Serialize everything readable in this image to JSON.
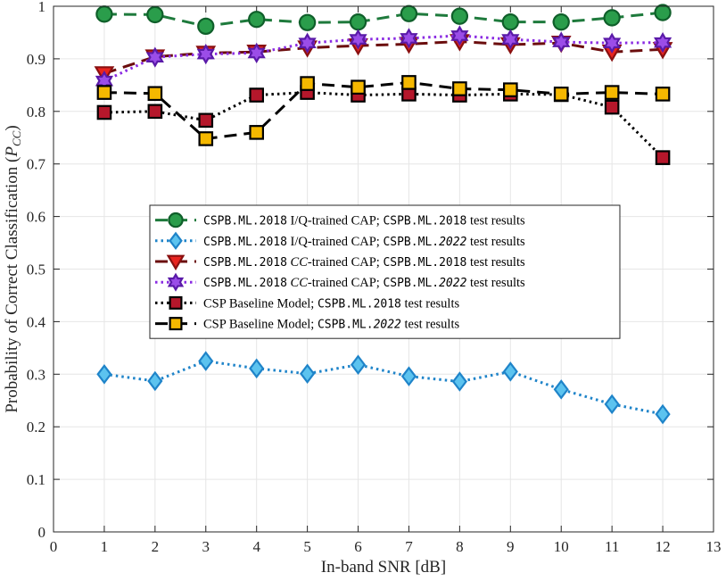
{
  "chart_data": {
    "type": "line",
    "xlabel": "In-band SNR [dB]",
    "ylabel": {
      "prefix": "Probability of Correct Classification (",
      "symbol": "P",
      "subscript": "CC",
      "suffix": ")"
    },
    "xlim": [
      0,
      13
    ],
    "ylim": [
      0,
      1
    ],
    "xticks": [
      "0",
      "1",
      "2",
      "3",
      "4",
      "5",
      "6",
      "7",
      "8",
      "9",
      "10",
      "11",
      "12",
      "13"
    ],
    "yticks": [
      "0",
      "0.1",
      "0.2",
      "0.3",
      "0.4",
      "0.5",
      "0.6",
      "0.7",
      "0.8",
      "0.9",
      "1"
    ],
    "grid": true,
    "legend_position": "center-left",
    "x": [
      1,
      2,
      3,
      4,
      5,
      6,
      7,
      8,
      9,
      10,
      11,
      12
    ],
    "series": [
      {
        "legend": [
          {
            "t": "CSPB.ML.2018",
            "s": "mono"
          },
          {
            "t": " I/Q-trained CAP; ",
            "s": "serif"
          },
          {
            "t": "CSPB.ML.2018",
            "s": "mono"
          },
          {
            "t": " test results",
            "s": "serif"
          }
        ],
        "values": [
          0.985,
          0.984,
          0.962,
          0.975,
          0.969,
          0.97,
          0.986,
          0.981,
          0.97,
          0.97,
          0.978,
          0.988
        ],
        "color": "#1e7a3c",
        "fill": "#2a9d4b",
        "stroke": "#0f5f2a",
        "dash": "14 8",
        "marker": "circle"
      },
      {
        "legend": [
          {
            "t": "CSPB.ML.2018",
            "s": "mono"
          },
          {
            "t": " I/Q-trained CAP; ",
            "s": "serif"
          },
          {
            "t": "CSPB.ML.",
            "s": "mono"
          },
          {
            "t": "2022",
            "s": "monoital"
          },
          {
            "t": " test results",
            "s": "serif"
          }
        ],
        "values": [
          0.3,
          0.287,
          0.325,
          0.311,
          0.301,
          0.318,
          0.296,
          0.286,
          0.305,
          0.271,
          0.243,
          0.224
        ],
        "color": "#1f84c9",
        "fill": "#5cc3ef",
        "stroke": "#1f84c9",
        "dash": "2.5 4",
        "marker": "diamond"
      },
      {
        "legend": [
          {
            "t": "CSPB.ML.2018",
            "s": "mono"
          },
          {
            "t": " ",
            "s": "serif"
          },
          {
            "t": "CC",
            "s": "ital"
          },
          {
            "t": "-trained CAP; ",
            "s": "serif"
          },
          {
            "t": "CSPB.ML.2018",
            "s": "mono"
          },
          {
            "t": " test results",
            "s": "serif"
          }
        ],
        "values": [
          0.872,
          0.904,
          0.911,
          0.913,
          0.921,
          0.925,
          0.928,
          0.933,
          0.927,
          0.93,
          0.913,
          0.918
        ],
        "color": "#6b0d0d",
        "fill": "#e8241f",
        "stroke": "#8a1010",
        "dash": "14 8",
        "marker": "triangle-down"
      },
      {
        "legend": [
          {
            "t": "CSPB.ML.2018",
            "s": "mono"
          },
          {
            "t": " ",
            "s": "serif"
          },
          {
            "t": "CC",
            "s": "ital"
          },
          {
            "t": "-trained CAP; ",
            "s": "serif"
          },
          {
            "t": "CSPB.ML.",
            "s": "mono"
          },
          {
            "t": "2022",
            "s": "monoital"
          },
          {
            "t": " test results",
            "s": "serif"
          }
        ],
        "values": [
          0.858,
          0.903,
          0.909,
          0.911,
          0.93,
          0.937,
          0.939,
          0.944,
          0.937,
          0.932,
          0.93,
          0.931
        ],
        "color": "#8a2be2",
        "fill": "#9b4de8",
        "stroke": "#5a1aa8",
        "dash": "2.5 4",
        "marker": "hexagram"
      },
      {
        "legend": [
          {
            "t": "CSP Baseline Model; ",
            "s": "serif"
          },
          {
            "t": "CSPB.ML.2018",
            "s": "mono"
          },
          {
            "t": " test results",
            "s": "serif"
          }
        ],
        "values": [
          0.798,
          0.8,
          0.783,
          0.831,
          0.836,
          0.831,
          0.833,
          0.831,
          0.833,
          0.832,
          0.808,
          0.712
        ],
        "color": "#000000",
        "fill": "#b5172b",
        "stroke": "#000000",
        "dash": "2.5 4",
        "marker": "square"
      },
      {
        "legend": [
          {
            "t": "CSP Baseline Model; ",
            "s": "serif"
          },
          {
            "t": "CSPB.ML.",
            "s": "mono"
          },
          {
            "t": "2022",
            "s": "monoital"
          },
          {
            "t": " test results",
            "s": "serif"
          }
        ],
        "values": [
          0.836,
          0.834,
          0.748,
          0.76,
          0.853,
          0.846,
          0.855,
          0.843,
          0.841,
          0.833,
          0.836,
          0.833
        ],
        "color": "#000000",
        "fill": "#f5b800",
        "stroke": "#000000",
        "dash": "14 8",
        "marker": "square"
      }
    ]
  }
}
